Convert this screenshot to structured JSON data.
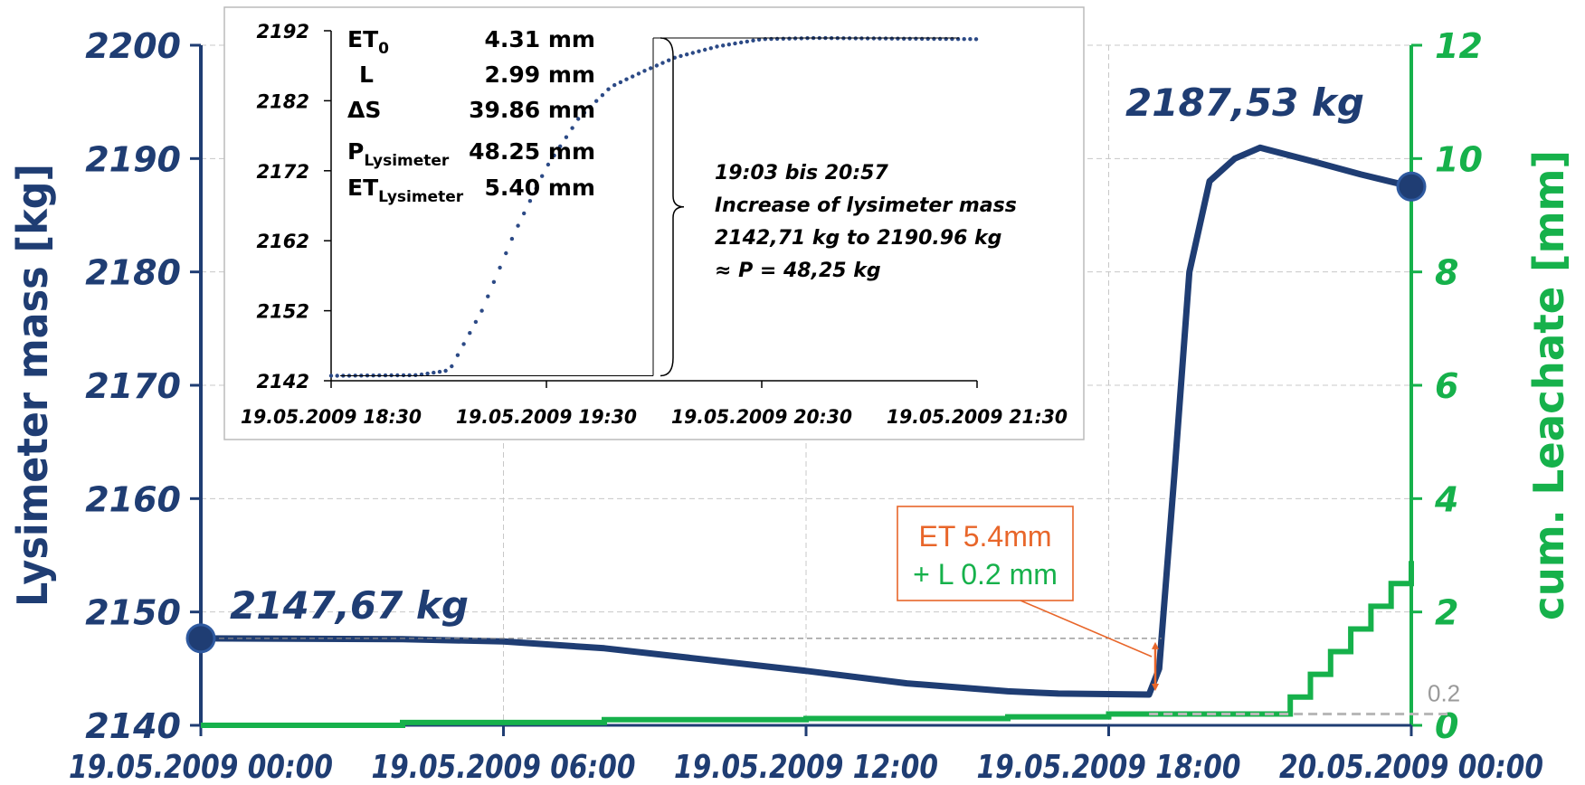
{
  "chart_data": {
    "type": "line",
    "main": {
      "x_tick_labels": [
        "19.05.2009 00:00",
        "19.05.2009 06:00",
        "19.05.2009 12:00",
        "19.05.2009 18:00",
        "20.05.2009 00:00"
      ],
      "ylabel_left": "Lysimeter mass [kg]",
      "ylabel_right": "cum. Leachate [mm]",
      "ylim_left": [
        2140,
        2200
      ],
      "ylim_right": [
        0,
        12
      ],
      "yticks_left": [
        "2140",
        "2150",
        "2160",
        "2170",
        "2180",
        "2190",
        "2200"
      ],
      "yticks_right": [
        "0",
        "2",
        "4",
        "6",
        "8",
        "10",
        "12"
      ],
      "grid": true,
      "series": [
        {
          "axis": "left",
          "color": "#1f3d73",
          "x_hours": [
            0,
            4,
            6,
            8,
            10,
            12,
            14,
            16,
            17,
            18,
            18.8,
            19.0,
            19.3,
            19.6,
            20.0,
            20.5,
            21.0,
            22.0,
            23.0,
            24.0
          ],
          "values": [
            2147.67,
            2147.6,
            2147.4,
            2146.8,
            2145.8,
            2144.8,
            2143.7,
            2143.0,
            2142.8,
            2142.75,
            2142.71,
            2145.0,
            2162.0,
            2180.0,
            2188.0,
            2190.0,
            2190.96,
            2189.8,
            2188.6,
            2187.53
          ]
        },
        {
          "axis": "right",
          "color": "#16b14b",
          "x_hours": [
            0,
            4,
            8,
            12,
            16,
            18,
            20,
            21.3,
            21.6,
            22.0,
            22.4,
            22.8,
            23.2,
            23.6,
            24.0
          ],
          "values": [
            0,
            0.05,
            0.1,
            0.12,
            0.15,
            0.2,
            0.2,
            0.2,
            0.5,
            0.9,
            1.3,
            1.7,
            2.1,
            2.5,
            2.9
          ]
        }
      ],
      "annotations": {
        "start_label": "2147,67 kg",
        "end_label": "2187,53 kg",
        "ref_label": "0.2",
        "et_line1": "ET 5.4mm",
        "et_line2": "+ L 0.2 mm"
      }
    },
    "inset": {
      "type": "scatter",
      "x_tick_labels": [
        "19.05.2009 18:30",
        "19.05.2009 19:30",
        "19.05.2009 20:30",
        "19.05.2009 21:30"
      ],
      "yticks": [
        "2142",
        "2152",
        "2162",
        "2172",
        "2182",
        "2192"
      ],
      "ylim": [
        2142,
        2192
      ],
      "color": "#2c4a86",
      "x_hours": [
        18.5,
        18.9,
        19.05,
        19.2,
        19.35,
        19.5,
        19.65,
        19.8,
        19.95,
        20.1,
        20.3,
        20.5,
        20.75,
        21.0,
        21.5
      ],
      "values": [
        2142.71,
        2142.8,
        2143.5,
        2152.0,
        2163.0,
        2172.5,
        2179.5,
        2184.0,
        2186.2,
        2188.2,
        2189.8,
        2190.8,
        2190.96,
        2190.9,
        2190.8
      ],
      "stats": [
        {
          "label": "ET",
          "sub": "0",
          "value": "4.31 mm"
        },
        {
          "label": "L",
          "sub": "",
          "value": "2.99 mm"
        },
        {
          "label": "ΔS",
          "sub": "",
          "value": "39.86 mm"
        },
        {
          "label": "P",
          "sub": "Lysimeter",
          "value": "48.25 mm"
        },
        {
          "label": "ET",
          "sub": "Lysimeter",
          "value": "5.40 mm"
        }
      ],
      "note": [
        "19:03 bis 20:57",
        "Increase of lysimeter mass",
        "2142,71 kg to 2190.96 kg",
        "≈ P  =  48,25 kg"
      ]
    },
    "colors": {
      "mass": "#1f3d73",
      "leachate": "#16b14b",
      "annotation": "#e8662a",
      "grid": "#c8c8c8",
      "reference": "#b8b8b8"
    }
  }
}
